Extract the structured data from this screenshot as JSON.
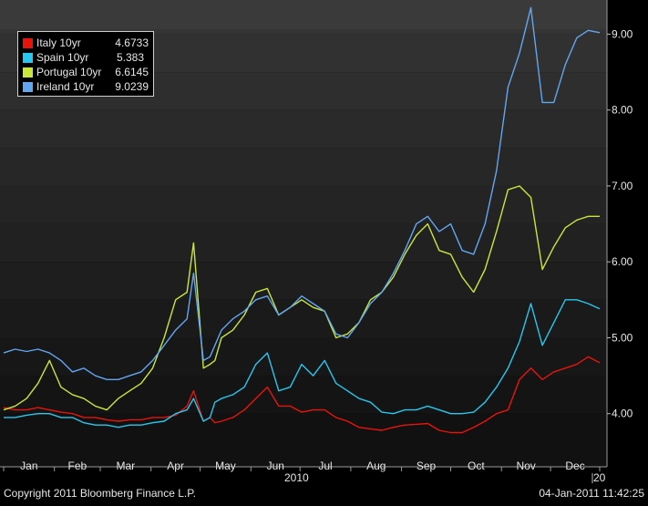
{
  "chart_data": {
    "type": "line",
    "title": "",
    "xlabel": "2010",
    "ylabel": "",
    "xlim": [
      "2010-01-01",
      "2010-12-31"
    ],
    "ylim": [
      3.3,
      9.45
    ],
    "grid": "horizontal bands",
    "legend_position": "top-left",
    "x_tick_labels": [
      "Jan",
      "Feb",
      "Mar",
      "Apr",
      "May",
      "Jun",
      "Jul",
      "Aug",
      "Sep",
      "Oct",
      "Nov",
      "Dec"
    ],
    "y_tick_labels": [
      "4.00",
      "5.00",
      "6.00",
      "7.00",
      "8.00",
      "9.00"
    ],
    "next_year_fragment": "20",
    "x_dates": [
      "2010-01-01",
      "2010-01-08",
      "2010-01-15",
      "2010-01-22",
      "2010-01-29",
      "2010-02-05",
      "2010-02-12",
      "2010-02-19",
      "2010-02-26",
      "2010-03-05",
      "2010-03-12",
      "2010-03-19",
      "2010-03-26",
      "2010-04-02",
      "2010-04-09",
      "2010-04-16",
      "2010-04-23",
      "2010-04-27",
      "2010-05-03",
      "2010-05-07",
      "2010-05-10",
      "2010-05-14",
      "2010-05-21",
      "2010-05-28",
      "2010-06-04",
      "2010-06-11",
      "2010-06-18",
      "2010-06-25",
      "2010-07-02",
      "2010-07-09",
      "2010-07-16",
      "2010-07-23",
      "2010-07-30",
      "2010-08-06",
      "2010-08-13",
      "2010-08-20",
      "2010-08-27",
      "2010-09-03",
      "2010-09-10",
      "2010-09-17",
      "2010-09-24",
      "2010-10-01",
      "2010-10-08",
      "2010-10-15",
      "2010-10-22",
      "2010-10-29",
      "2010-11-05",
      "2010-11-12",
      "2010-11-19",
      "2010-11-26",
      "2010-12-03",
      "2010-12-10",
      "2010-12-17",
      "2010-12-24",
      "2010-12-31"
    ],
    "series": [
      {
        "name": "Italy 10yr",
        "last_value": "4.6733",
        "color": "#e8140c",
        "values": [
          4.08,
          4.05,
          4.05,
          4.08,
          4.05,
          4.02,
          4.0,
          3.95,
          3.95,
          3.92,
          3.9,
          3.92,
          3.92,
          3.95,
          3.95,
          3.98,
          4.1,
          4.3,
          3.9,
          3.95,
          3.88,
          3.9,
          3.95,
          4.05,
          4.2,
          4.35,
          4.1,
          4.1,
          4.02,
          4.05,
          4.05,
          3.95,
          3.9,
          3.82,
          3.8,
          3.78,
          3.82,
          3.85,
          3.86,
          3.87,
          3.78,
          3.75,
          3.75,
          3.82,
          3.9,
          4.0,
          4.05,
          4.45,
          4.6,
          4.45,
          4.55,
          4.6,
          4.65,
          4.75,
          4.67
        ]
      },
      {
        "name": "Spain 10yr",
        "last_value": "5.383",
        "color": "#29c6ee",
        "values": [
          3.95,
          3.95,
          3.98,
          4.0,
          4.0,
          3.95,
          3.95,
          3.88,
          3.85,
          3.85,
          3.82,
          3.85,
          3.85,
          3.88,
          3.9,
          4.0,
          4.05,
          4.2,
          3.9,
          3.95,
          4.15,
          4.2,
          4.25,
          4.35,
          4.65,
          4.8,
          4.3,
          4.35,
          4.65,
          4.5,
          4.7,
          4.4,
          4.3,
          4.2,
          4.15,
          4.02,
          4.0,
          4.05,
          4.05,
          4.1,
          4.05,
          4.0,
          4.0,
          4.02,
          4.15,
          4.35,
          4.6,
          4.95,
          5.45,
          4.9,
          5.2,
          5.5,
          5.5,
          5.45,
          5.38
        ]
      },
      {
        "name": "Portugal 10yr",
        "last_value": "6.6145",
        "color": "#c8e63c",
        "values": [
          4.05,
          4.1,
          4.2,
          4.4,
          4.7,
          4.35,
          4.25,
          4.2,
          4.1,
          4.05,
          4.2,
          4.3,
          4.4,
          4.6,
          5.0,
          5.5,
          5.6,
          6.25,
          4.6,
          4.65,
          4.7,
          5.0,
          5.1,
          5.3,
          5.6,
          5.65,
          5.3,
          5.4,
          5.5,
          5.4,
          5.35,
          5.0,
          5.05,
          5.2,
          5.5,
          5.6,
          5.8,
          6.1,
          6.35,
          6.5,
          6.15,
          6.1,
          5.8,
          5.6,
          5.9,
          6.4,
          6.95,
          7.0,
          6.85,
          5.9,
          6.2,
          6.45,
          6.55,
          6.6,
          6.6
        ]
      },
      {
        "name": "Ireland 10yr",
        "last_value": "9.0239",
        "color": "#63a6f0",
        "values": [
          4.8,
          4.85,
          4.82,
          4.85,
          4.8,
          4.7,
          4.55,
          4.6,
          4.5,
          4.45,
          4.45,
          4.5,
          4.55,
          4.7,
          4.9,
          5.1,
          5.25,
          5.85,
          4.7,
          4.75,
          4.9,
          5.1,
          5.25,
          5.35,
          5.5,
          5.55,
          5.3,
          5.4,
          5.55,
          5.45,
          5.35,
          5.05,
          5.0,
          5.2,
          5.45,
          5.6,
          5.85,
          6.15,
          6.5,
          6.6,
          6.4,
          6.5,
          6.15,
          6.1,
          6.5,
          7.2,
          8.3,
          8.75,
          9.35,
          8.1,
          8.1,
          8.6,
          8.95,
          9.05,
          9.02
        ]
      }
    ]
  },
  "footer": {
    "copyright": "Copyright 2011 Bloomberg Finance L.P.",
    "timestamp": "04-Jan-2011 11:42:25"
  }
}
